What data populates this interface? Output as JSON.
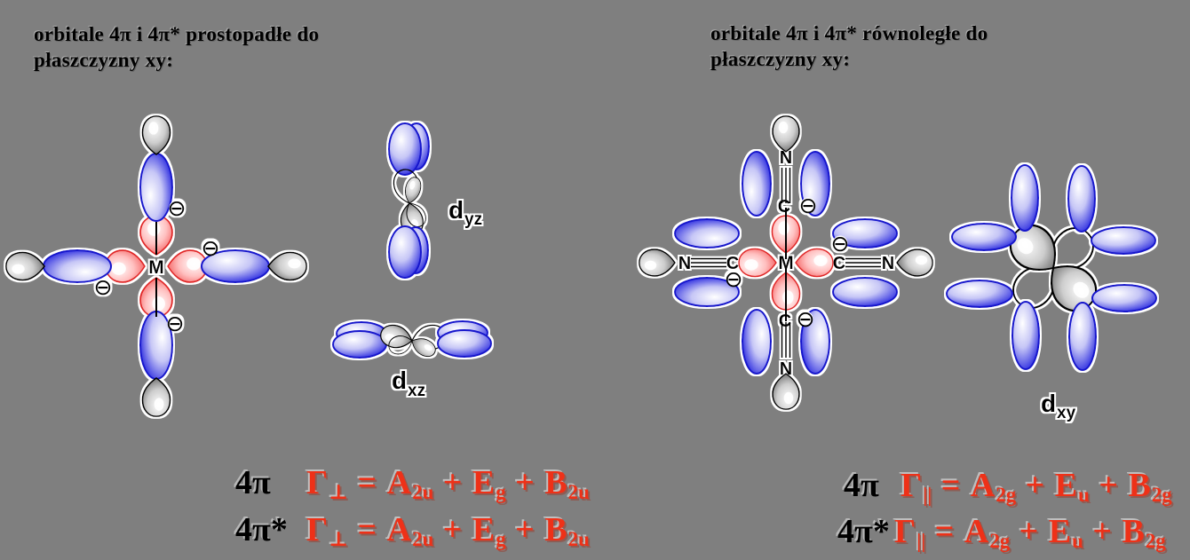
{
  "headers": {
    "left_line1": "orbitale 4π i 4π* prostopadłe do",
    "left_line2": "płaszczyzny xy:",
    "right_line1": "orbitale 4π i 4π* równoległe do",
    "right_line2": "płaszczyzny xy:"
  },
  "molecule": {
    "metal": "M",
    "carbon": "C",
    "nitrogen": "N",
    "charge": "⊖"
  },
  "orbital_labels": {
    "dyz": {
      "main": "d",
      "sub": "yz"
    },
    "dxz": {
      "main": "d",
      "sub": "xz"
    },
    "dxy": {
      "main": "d",
      "sub": "xy"
    }
  },
  "equations": {
    "left": [
      {
        "prefix": "4π",
        "tokens": [
          {
            "t": "Γ"
          },
          {
            "sub": "⊥"
          },
          {
            "t": " = A"
          },
          {
            "sub": "2u"
          },
          {
            "t": " + E"
          },
          {
            "sub": "g"
          },
          {
            "t": " + B"
          },
          {
            "sub": "2u"
          }
        ]
      },
      {
        "prefix": "4π*",
        "tokens": [
          {
            "t": "Γ"
          },
          {
            "sub": "⊥"
          },
          {
            "t": " = A"
          },
          {
            "sub": "2u"
          },
          {
            "t": " + E"
          },
          {
            "sub": "g"
          },
          {
            "t": " + B"
          },
          {
            "sub": "2u"
          }
        ]
      }
    ],
    "right": [
      {
        "prefix": "4π",
        "tokens": [
          {
            "t": "Γ"
          },
          {
            "sub": "||"
          },
          {
            "t": " = A"
          },
          {
            "sub": "2g"
          },
          {
            "t": " + E"
          },
          {
            "sub": "u"
          },
          {
            "t": " + B"
          },
          {
            "sub": "2g"
          }
        ]
      },
      {
        "prefix": "4π*",
        "tokens": [
          {
            "t": "Γ"
          },
          {
            "sub": "||"
          },
          {
            "t": " = A"
          },
          {
            "sub": "2g"
          },
          {
            "t": " + E"
          },
          {
            "sub": "u"
          },
          {
            "t": " + B"
          },
          {
            "sub": "2g"
          }
        ]
      }
    ]
  },
  "colors": {
    "background": "#7f7f7f",
    "equation_red": "#ee3118",
    "lobe_blue": "#1f1fd9",
    "lobe_red": "#ee3a3a",
    "lobe_gray": "#6a6a6a",
    "text": "#000000"
  }
}
